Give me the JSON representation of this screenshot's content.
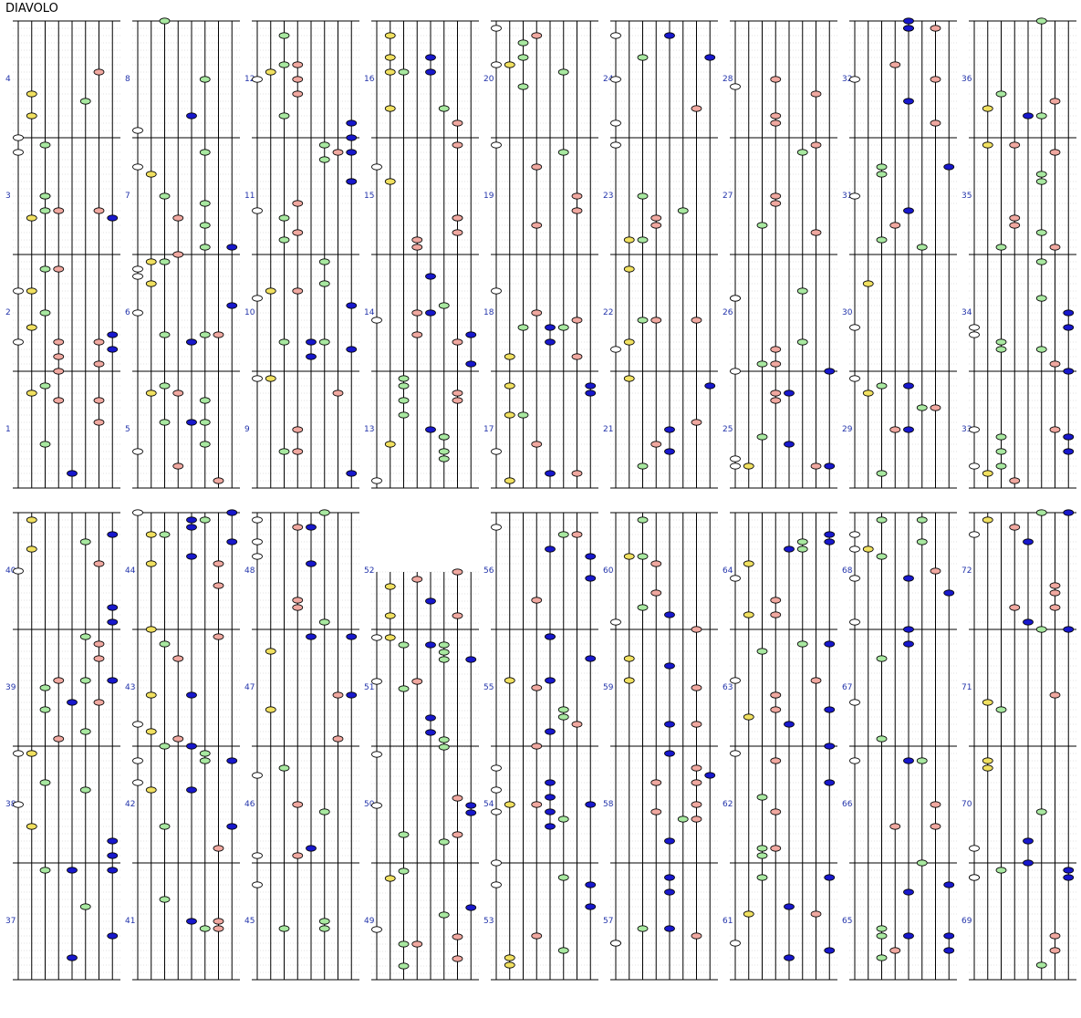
{
  "title": "DIAVOLO",
  "note_colors": {
    "white": "#ffffff",
    "yellow": "#f0e060",
    "green": "#a8e8a0",
    "red": "#f0a8a0",
    "blue": "#1818cc",
    "stroke": "#000000"
  },
  "lane_count": 8,
  "columns": [
    {
      "measures": [
        4,
        3,
        2,
        1
      ]
    },
    {
      "measures": [
        8,
        7,
        6,
        5
      ]
    },
    {
      "measures": [
        12,
        11,
        10,
        9
      ]
    },
    {
      "measures": [
        16,
        15,
        14,
        13
      ]
    },
    {
      "measures": [
        20,
        19,
        18,
        17
      ]
    },
    {
      "measures": [
        24,
        23,
        22,
        21
      ]
    },
    {
      "measures": [
        28,
        27,
        26,
        25
      ]
    },
    {
      "measures": [
        32,
        31,
        30,
        29
      ]
    },
    {
      "measures": [
        36,
        35,
        34,
        33
      ]
    },
    {
      "measures": [
        40,
        39,
        38,
        37
      ]
    },
    {
      "measures": [
        44,
        43,
        42,
        41
      ]
    },
    {
      "measures": [
        48,
        47,
        46,
        45
      ]
    },
    {
      "measures": [
        52,
        51,
        50,
        49
      ]
    },
    {
      "measures": [
        56,
        55,
        54,
        53
      ]
    },
    {
      "measures": [
        60,
        59,
        58,
        57
      ]
    },
    {
      "measures": [
        64,
        63,
        62,
        61
      ]
    },
    {
      "measures": [
        68,
        67,
        66,
        65
      ]
    },
    {
      "measures": [
        72,
        71,
        70,
        69
      ]
    }
  ]
}
